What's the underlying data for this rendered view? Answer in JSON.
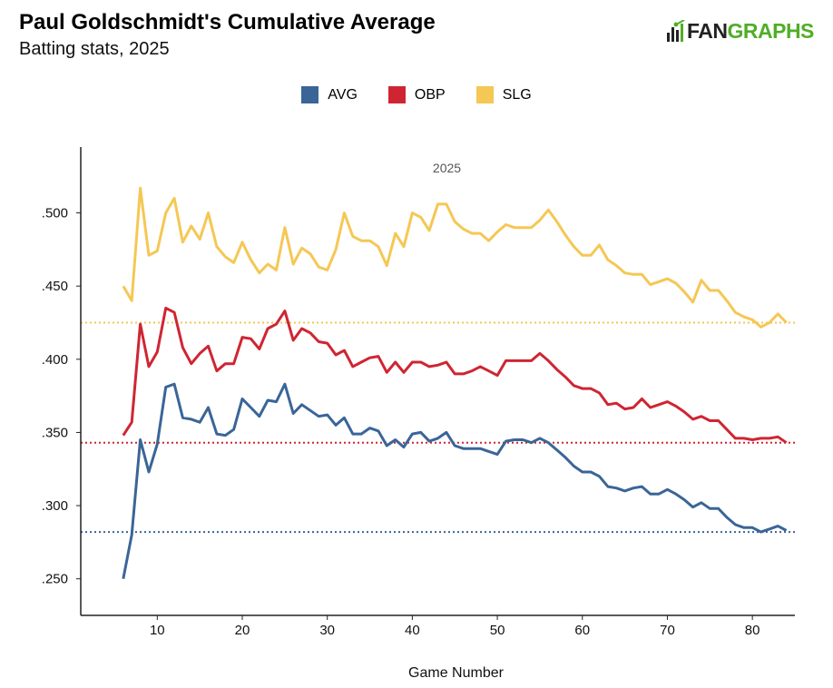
{
  "header": {
    "title": "Paul Goldschmidt's Cumulative Average",
    "subtitle": "Batting stats, 2025",
    "logo_fan": "FAN",
    "logo_graphs": "GRAPHS"
  },
  "colors": {
    "AVG": "#3a6597",
    "OBP": "#cf2532",
    "SLG": "#f5c754",
    "axis": "#222222",
    "logo_green": "#50ae26"
  },
  "chart_data": {
    "type": "line",
    "title": "Paul Goldschmidt's Cumulative Average",
    "subtitle": "Batting stats, 2025",
    "xlabel": "Game Number",
    "ylabel": "",
    "annotation": "2025",
    "xlim": [
      1,
      85
    ],
    "ylim": [
      0.225,
      0.545
    ],
    "x_ticks": [
      10,
      20,
      30,
      40,
      50,
      60,
      70,
      80
    ],
    "y_ticks": [
      ".250",
      ".300",
      ".350",
      ".400",
      ".450",
      ".500"
    ],
    "y_tick_values": [
      0.25,
      0.3,
      0.35,
      0.4,
      0.45,
      0.5
    ],
    "grid": false,
    "legend_position": "top-center",
    "x": [
      6,
      7,
      8,
      9,
      10,
      11,
      12,
      13,
      14,
      15,
      16,
      17,
      18,
      19,
      20,
      21,
      22,
      23,
      24,
      25,
      26,
      27,
      28,
      29,
      30,
      31,
      32,
      33,
      34,
      35,
      36,
      37,
      38,
      39,
      40,
      41,
      42,
      43,
      44,
      45,
      46,
      47,
      48,
      49,
      50,
      51,
      52,
      53,
      54,
      55,
      56,
      57,
      58,
      59,
      60,
      61,
      62,
      63,
      64,
      65,
      66,
      67,
      68,
      69,
      70,
      71,
      72,
      73,
      74,
      75,
      76,
      77,
      78,
      79,
      80,
      81,
      82,
      83,
      84
    ],
    "series": [
      {
        "name": "AVG",
        "color": "#3a6597",
        "season_average": 0.282,
        "values": [
          0.25,
          0.28,
          0.345,
          0.323,
          0.342,
          0.381,
          0.383,
          0.36,
          0.359,
          0.357,
          0.367,
          0.349,
          0.348,
          0.352,
          0.373,
          0.367,
          0.361,
          0.372,
          0.371,
          0.383,
          0.363,
          0.369,
          0.365,
          0.361,
          0.362,
          0.355,
          0.36,
          0.349,
          0.349,
          0.353,
          0.351,
          0.341,
          0.345,
          0.34,
          0.349,
          0.35,
          0.344,
          0.346,
          0.35,
          0.341,
          0.339,
          0.339,
          0.339,
          0.337,
          0.335,
          0.344,
          0.345,
          0.345,
          0.343,
          0.346,
          0.343,
          0.338,
          0.333,
          0.327,
          0.323,
          0.323,
          0.32,
          0.313,
          0.312,
          0.31,
          0.312,
          0.313,
          0.308,
          0.308,
          0.311,
          0.308,
          0.304,
          0.299,
          0.302,
          0.298,
          0.298,
          0.292,
          0.287,
          0.285,
          0.285,
          0.282,
          0.284,
          0.286,
          0.283
        ]
      },
      {
        "name": "OBP",
        "color": "#cf2532",
        "season_average": 0.343,
        "values": [
          0.348,
          0.357,
          0.424,
          0.395,
          0.405,
          0.435,
          0.432,
          0.408,
          0.397,
          0.404,
          0.409,
          0.392,
          0.397,
          0.397,
          0.415,
          0.414,
          0.407,
          0.421,
          0.424,
          0.433,
          0.413,
          0.421,
          0.418,
          0.412,
          0.411,
          0.403,
          0.406,
          0.395,
          0.398,
          0.401,
          0.402,
          0.391,
          0.398,
          0.391,
          0.398,
          0.398,
          0.395,
          0.396,
          0.398,
          0.39,
          0.39,
          0.392,
          0.395,
          0.392,
          0.389,
          0.399,
          0.399,
          0.399,
          0.399,
          0.404,
          0.399,
          0.393,
          0.388,
          0.382,
          0.38,
          0.38,
          0.377,
          0.369,
          0.37,
          0.366,
          0.367,
          0.373,
          0.367,
          0.369,
          0.371,
          0.368,
          0.364,
          0.359,
          0.361,
          0.358,
          0.358,
          0.352,
          0.346,
          0.346,
          0.345,
          0.346,
          0.346,
          0.347,
          0.343
        ]
      },
      {
        "name": "SLG",
        "color": "#f5c754",
        "season_average": 0.425,
        "values": [
          0.45,
          0.44,
          0.517,
          0.471,
          0.474,
          0.5,
          0.51,
          0.48,
          0.491,
          0.482,
          0.5,
          0.477,
          0.47,
          0.466,
          0.48,
          0.468,
          0.459,
          0.465,
          0.461,
          0.49,
          0.465,
          0.476,
          0.472,
          0.463,
          0.461,
          0.475,
          0.5,
          0.484,
          0.481,
          0.481,
          0.477,
          0.464,
          0.486,
          0.477,
          0.5,
          0.497,
          0.488,
          0.506,
          0.506,
          0.494,
          0.489,
          0.486,
          0.486,
          0.481,
          0.487,
          0.492,
          0.49,
          0.49,
          0.49,
          0.495,
          0.502,
          0.494,
          0.485,
          0.477,
          0.471,
          0.471,
          0.478,
          0.468,
          0.464,
          0.459,
          0.458,
          0.458,
          0.451,
          0.453,
          0.455,
          0.452,
          0.446,
          0.439,
          0.454,
          0.447,
          0.447,
          0.44,
          0.432,
          0.429,
          0.427,
          0.422,
          0.425,
          0.431,
          0.425
        ]
      }
    ]
  }
}
